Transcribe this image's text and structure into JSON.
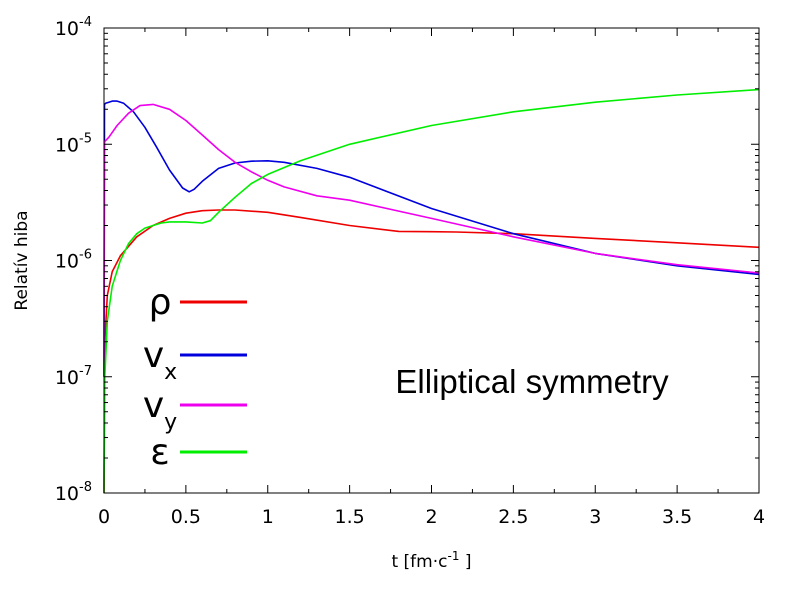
{
  "chart_data": {
    "type": "line",
    "title": "",
    "xlabel": {
      "base": "t [fm·c",
      "sup": "-1",
      "tail": " ]"
    },
    "ylabel": "Relatív hiba",
    "xlim": [
      0,
      4
    ],
    "ylim": [
      1e-08,
      0.0001
    ],
    "yscale": "log",
    "grid": false,
    "legend_position": "left-middle",
    "x_ticks": [
      "0",
      "0.5",
      "1",
      "1.5",
      "2",
      "2.5",
      "3",
      "3.5",
      "4"
    ],
    "y_ticks": [
      {
        "base": "10",
        "exp": "-8"
      },
      {
        "base": "10",
        "exp": "-7"
      },
      {
        "base": "10",
        "exp": "-6"
      },
      {
        "base": "10",
        "exp": "-5"
      },
      {
        "base": "10",
        "exp": "-4"
      }
    ],
    "annotation": "Elliptical symmetry",
    "series": [
      {
        "name": "ρ",
        "sub": "",
        "color": "#ee0000",
        "x": [
          0,
          0.005,
          0.02,
          0.05,
          0.1,
          0.2,
          0.3,
          0.4,
          0.5,
          0.6,
          0.7,
          0.8,
          1.0,
          1.2,
          1.5,
          1.8,
          2.0,
          2.15,
          2.5,
          3.0,
          3.5,
          4.0
        ],
        "y": [
          1e-08,
          2e-07,
          5e-07,
          8e-07,
          1.1e-06,
          1.6e-06,
          2e-06,
          2.3e-06,
          2.55e-06,
          2.68e-06,
          2.72e-06,
          2.72e-06,
          2.6e-06,
          2.35e-06,
          2e-06,
          1.78e-06,
          1.77e-06,
          1.76e-06,
          1.7e-06,
          1.55e-06,
          1.42e-06,
          1.3e-06
        ]
      },
      {
        "name": "v",
        "sub": "x",
        "color": "#0000dd",
        "x": [
          0,
          0.003,
          0.01,
          0.03,
          0.05,
          0.08,
          0.12,
          0.18,
          0.25,
          0.32,
          0.4,
          0.48,
          0.52,
          0.55,
          0.6,
          0.7,
          0.8,
          0.9,
          1.0,
          1.1,
          1.3,
          1.5,
          2.0,
          2.5,
          3.0,
          3.5,
          4.0
        ],
        "y": [
          1e-07,
          2.2e-05,
          2.25e-05,
          2.3e-05,
          2.35e-05,
          2.35e-05,
          2.25e-05,
          1.9e-05,
          1.4e-05,
          9.5e-06,
          6e-06,
          4.2e-06,
          3.9e-06,
          4.1e-06,
          4.8e-06,
          6.2e-06,
          6.9e-06,
          7.15e-06,
          7.2e-06,
          7e-06,
          6.2e-06,
          5.2e-06,
          2.8e-06,
          1.7e-06,
          1.15e-06,
          9e-07,
          7.6e-07
        ]
      },
      {
        "name": "v",
        "sub": "y",
        "color": "#ee00ee",
        "x": [
          0,
          0.003,
          0.03,
          0.08,
          0.15,
          0.22,
          0.3,
          0.4,
          0.5,
          0.6,
          0.7,
          0.8,
          0.9,
          1.0,
          1.1,
          1.3,
          1.5,
          2.0,
          2.5,
          3.0,
          3.5,
          4.0
        ],
        "y": [
          1e-07,
          1.05e-05,
          1.15e-05,
          1.45e-05,
          1.85e-05,
          2.15e-05,
          2.2e-05,
          2e-05,
          1.6e-05,
          1.2e-05,
          9e-06,
          7e-06,
          5.8e-06,
          4.9e-06,
          4.3e-06,
          3.6e-06,
          3.3e-06,
          2.3e-06,
          1.6e-06,
          1.15e-06,
          9.2e-07,
          7.8e-07
        ]
      },
      {
        "name": "ε",
        "sub": "",
        "color": "#00ee00",
        "x": [
          0,
          0.005,
          0.02,
          0.05,
          0.1,
          0.15,
          0.2,
          0.25,
          0.3,
          0.35,
          0.4,
          0.5,
          0.6,
          0.65,
          0.7,
          0.8,
          0.9,
          1.0,
          1.2,
          1.5,
          2.0,
          2.5,
          3.0,
          3.5,
          4.0
        ],
        "y": [
          1e-08,
          1e-07,
          3e-07,
          6e-07,
          1e-06,
          1.4e-06,
          1.7e-06,
          1.9e-06,
          2e-06,
          2.1e-06,
          2.15e-06,
          2.15e-06,
          2.1e-06,
          2.2e-06,
          2.6e-06,
          3.5e-06,
          4.6e-06,
          5.5e-06,
          7.2e-06,
          1e-05,
          1.45e-05,
          1.9e-05,
          2.3e-05,
          2.65e-05,
          2.95e-05
        ]
      }
    ]
  }
}
